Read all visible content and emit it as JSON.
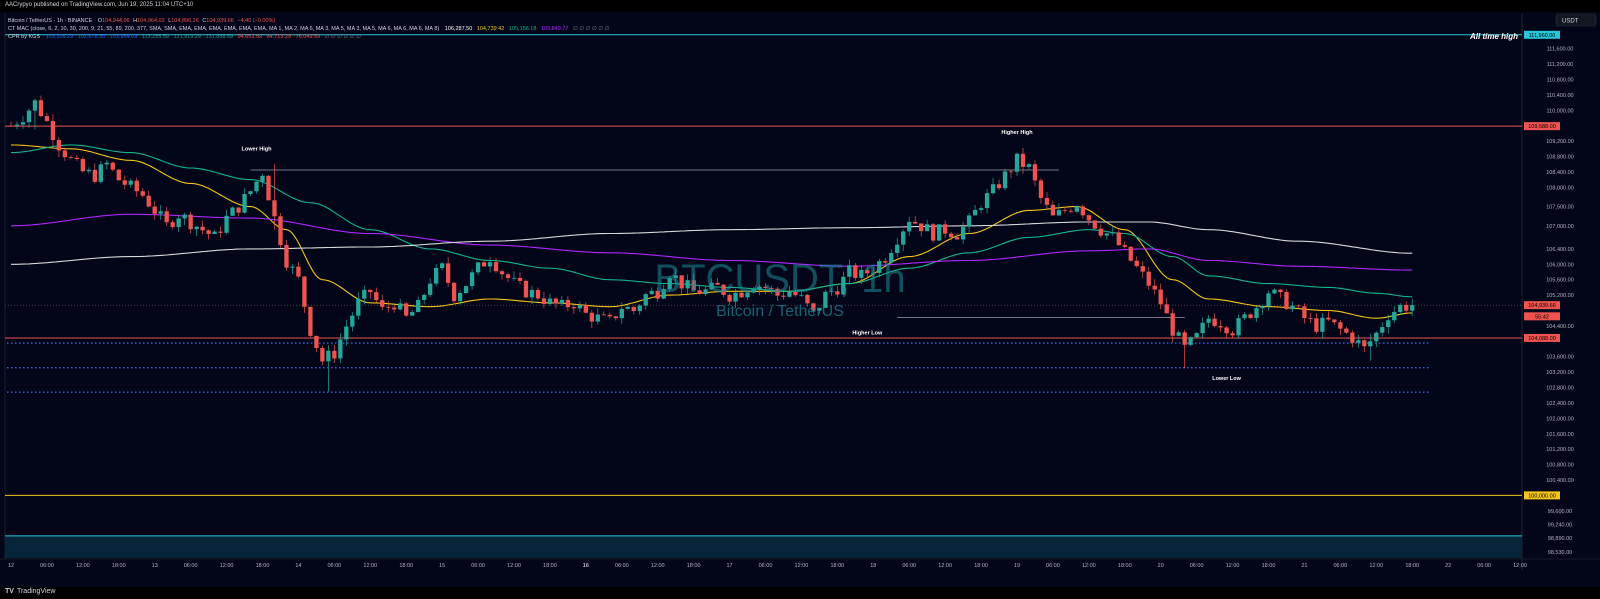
{
  "header": {
    "published": "AACrypyo published on TradingView.com, Jun 19, 2025 11:04 UTC+10"
  },
  "legend": {
    "line1": {
      "symbol": "Bitcoin / TetherUS · 1h · BINANCE",
      "o_label": "O",
      "o": "104,944.06",
      "h_label": "H",
      "h": "104,964.02",
      "l_label": "L",
      "l": "104,896.26",
      "c_label": "C",
      "c": "104,939.66",
      "chg": "−4.40 (−0.00%)"
    },
    "line2": {
      "label": "CT MAC (close, 6, 2, 10, 30, 200, 9, 21, 55, 89, 200, 377, SMA, SMA, EMA, EMA, EMA, EMA, EMA, EMA, MA 1, MA 2, MA 6, MA 3, MA 5, MA 3, MA 5, MA 6, MA 6, MA 6, MA 8)",
      "v1": "106,287.50",
      "v2": "104,739.42",
      "v3": "105,156.18",
      "v4": "105,849.77",
      "tail": "∅ ∅ ∅ ∅ ∅ ∅"
    },
    "line3": {
      "label": "CPR by KGS",
      "v1": "103,316.29",
      "v2": "102,678.50",
      "v3": "103,954.09",
      "v4": "113,255.59",
      "v5": "121,919.29",
      "v6": "131,858.59",
      "v7": "94,652.59",
      "v8": "84,713.29",
      "v9": "76,049.59",
      "tail": "∅ ∅ ∅ ∅ ∅ ∅"
    }
  },
  "watermark": {
    "symbol": "BTCUSDT, 1h",
    "name": "Bitcoin / TetherUS"
  },
  "currency_button": "USDT",
  "ath_label": "All time high",
  "footer": {
    "logo": "TradingView",
    "logo_mark": "TV"
  },
  "colors": {
    "background": "#020618",
    "up": "#26a69a",
    "down": "#ef5350",
    "ath_line": "#26c6da",
    "red_line": "#ef5350",
    "yellow_line": "#f0c040",
    "cpr_dots": "#2962ff",
    "ma_yellow": "#f5c518",
    "ma_green": "#13b58a",
    "ma_purple": "#b026ff",
    "ma_white": "#d8d8d8",
    "label_blue": "#2962ff",
    "label_cyan": "#26c6da",
    "label_green": "#26a69a",
    "label_red": "#ef5350",
    "label_yellow": "#f5c518",
    "label_purple": "#b026ff"
  },
  "chart_data": {
    "type": "candlestick",
    "title": "BTCUSDT, 1h",
    "ylim": [
      98400,
      112500
    ],
    "y_ticks": [
      98530,
      98890,
      99240,
      99600,
      100400,
      100800,
      101200,
      101600,
      102000,
      102400,
      102800,
      103200,
      103600,
      104400,
      105200,
      105600,
      106000,
      106400,
      107000,
      107500,
      108000,
      108400,
      108800,
      109200,
      110000,
      110400,
      110800,
      111200,
      111600
    ],
    "y_tick_labels": [
      "98,530.00",
      "98,890.00",
      "99,240.00",
      "99,600.00",
      "100,400.00",
      "100,800.00",
      "101,200.00",
      "101,600.00",
      "102,000.00",
      "102,400.00",
      "102,800.00",
      "103,200.00",
      "103,600.00",
      "104,400.00",
      "105,200.00",
      "105,600.00",
      "106,000.00",
      "106,400.00",
      "107,000.00",
      "107,500.00",
      "108,000.00",
      "108,400.00",
      "108,800.00",
      "109,200.00",
      "110,000.00",
      "110,400.00",
      "110,800.00",
      "111,200.00",
      "111,600.00"
    ],
    "price_labels": [
      {
        "value": 111960,
        "text": "111,960.00",
        "color": "#26c6da"
      },
      {
        "value": 109588,
        "text": "109,588.00",
        "color": "#ef5350"
      },
      {
        "value": 104939.66,
        "text": "104,939.66",
        "color": "#ef5350"
      },
      {
        "value": 104650,
        "text": "55:42",
        "color": "#ef5350"
      },
      {
        "value": 104088,
        "text": "104,088.00",
        "color": "#ef5350"
      },
      {
        "value": 100000,
        "text": "100,000.00",
        "color": "#f5c518"
      }
    ],
    "x_axis": {
      "start": "Jun 12 00:00",
      "end": "Jun 22 12:00",
      "tick_step_hours": 6,
      "tick_labels": [
        "12",
        "06:00",
        "12:00",
        "18:00",
        "13",
        "06:00",
        "12:00",
        "18:00",
        "14",
        "06:00",
        "12:00",
        "18:00",
        "15",
        "06:00",
        "12:00",
        "18:00",
        "16",
        "06:00",
        "12:00",
        "18:00",
        "17",
        "06:00",
        "12:00",
        "18:00",
        "18",
        "06:00",
        "12:00",
        "18:00",
        "19",
        "06:00",
        "12:00",
        "18:00",
        "20",
        "06:00",
        "12:00",
        "18:00",
        "21",
        "06:00",
        "12:00",
        "18:00",
        "22",
        "06:00",
        "12:00"
      ],
      "bold_labels": [
        "16"
      ]
    },
    "horizontal_levels": [
      {
        "name": "all-time-high",
        "value": 111960,
        "color": "#26c6da"
      },
      {
        "name": "resistance",
        "value": 109588,
        "color": "#ef5350"
      },
      {
        "name": "support",
        "value": 104088,
        "color": "#ef5350"
      },
      {
        "name": "round-number",
        "value": 100000,
        "color": "#f5c518"
      },
      {
        "name": "band-top",
        "value": 98950,
        "color": "#26c6da"
      }
    ],
    "cpr_levels": [
      103954.09,
      103316.29,
      102678.5
    ],
    "swing_lines": [
      {
        "from_hour": 40,
        "to_hour": 175,
        "value": 108450
      },
      {
        "from_hour": 148,
        "to_hour": 196,
        "value": 104620
      }
    ],
    "annotations": [
      {
        "text": "Lower High",
        "hour": 41,
        "value": 108950
      },
      {
        "text": "Higher High",
        "hour": 168,
        "value": 109380
      },
      {
        "text": "Higher Low",
        "hour": 143,
        "value": 104180
      },
      {
        "text": "Lower Low",
        "hour": 203,
        "value": 102990
      }
    ],
    "close_path": [
      [
        0,
        109600
      ],
      [
        2,
        109850
      ],
      [
        4,
        110200
      ],
      [
        6,
        109700
      ],
      [
        8,
        109100
      ],
      [
        10,
        108700
      ],
      [
        12,
        108400
      ],
      [
        14,
        108300
      ],
      [
        16,
        108600
      ],
      [
        18,
        108200
      ],
      [
        20,
        108000
      ],
      [
        22,
        107800
      ],
      [
        24,
        107400
      ],
      [
        26,
        107000
      ],
      [
        28,
        107300
      ],
      [
        30,
        107100
      ],
      [
        32,
        106900
      ],
      [
        34,
        106700
      ],
      [
        36,
        107200
      ],
      [
        38,
        107500
      ],
      [
        40,
        107900
      ],
      [
        42,
        108400
      ],
      [
        44,
        107200
      ],
      [
        46,
        106100
      ],
      [
        48,
        105600
      ],
      [
        50,
        104300
      ],
      [
        52,
        103500
      ],
      [
        54,
        103700
      ],
      [
        56,
        104400
      ],
      [
        58,
        105000
      ],
      [
        60,
        105300
      ],
      [
        62,
        104800
      ],
      [
        64,
        105000
      ],
      [
        66,
        104600
      ],
      [
        68,
        104900
      ],
      [
        70,
        105600
      ],
      [
        72,
        105900
      ],
      [
        74,
        105200
      ],
      [
        76,
        105500
      ],
      [
        78,
        105900
      ],
      [
        80,
        106200
      ],
      [
        82,
        105800
      ],
      [
        84,
        105500
      ],
      [
        86,
        105300
      ],
      [
        88,
        105200
      ],
      [
        90,
        105000
      ],
      [
        92,
        104900
      ],
      [
        94,
        105000
      ],
      [
        96,
        104700
      ],
      [
        98,
        104600
      ],
      [
        100,
        104500
      ],
      [
        102,
        104900
      ],
      [
        104,
        104800
      ],
      [
        106,
        105200
      ],
      [
        108,
        105300
      ],
      [
        110,
        105800
      ],
      [
        112,
        105500
      ],
      [
        114,
        105300
      ],
      [
        116,
        105300
      ],
      [
        118,
        105400
      ],
      [
        120,
        105200
      ],
      [
        122,
        105300
      ],
      [
        124,
        105500
      ],
      [
        126,
        105400
      ],
      [
        128,
        105200
      ],
      [
        130,
        105300
      ],
      [
        132,
        105100
      ],
      [
        134,
        104700
      ],
      [
        136,
        105200
      ],
      [
        138,
        105400
      ],
      [
        140,
        105800
      ],
      [
        142,
        105700
      ],
      [
        144,
        105900
      ],
      [
        146,
        106200
      ],
      [
        148,
        106700
      ],
      [
        150,
        107200
      ],
      [
        152,
        107000
      ],
      [
        154,
        106800
      ],
      [
        156,
        106900
      ],
      [
        158,
        106800
      ],
      [
        160,
        107100
      ],
      [
        162,
        107600
      ],
      [
        164,
        107900
      ],
      [
        166,
        108300
      ],
      [
        168,
        108700
      ],
      [
        170,
        108500
      ],
      [
        172,
        107700
      ],
      [
        174,
        107200
      ],
      [
        176,
        107400
      ],
      [
        178,
        107600
      ],
      [
        180,
        107200
      ],
      [
        182,
        106900
      ],
      [
        184,
        106700
      ],
      [
        186,
        106300
      ],
      [
        188,
        105900
      ],
      [
        190,
        105500
      ],
      [
        192,
        105000
      ],
      [
        194,
        104300
      ],
      [
        196,
        103800
      ],
      [
        198,
        104100
      ],
      [
        200,
        104600
      ],
      [
        202,
        104500
      ],
      [
        204,
        104300
      ],
      [
        206,
        104600
      ],
      [
        208,
        104900
      ],
      [
        210,
        105300
      ],
      [
        212,
        105100
      ],
      [
        214,
        104900
      ],
      [
        216,
        104600
      ],
      [
        218,
        104400
      ],
      [
        220,
        104500
      ],
      [
        222,
        104300
      ],
      [
        224,
        104100
      ],
      [
        226,
        103800
      ],
      [
        228,
        104200
      ],
      [
        230,
        104700
      ],
      [
        232,
        104900
      ],
      [
        234,
        104939.66
      ]
    ],
    "extremes": [
      {
        "hour": 4,
        "high": 110300,
        "low": 109500
      },
      {
        "hour": 44,
        "high": 108600,
        "low": 106900
      },
      {
        "hour": 53,
        "high": 103900,
        "low": 102700
      },
      {
        "hour": 168,
        "high": 108900,
        "low": 108300
      },
      {
        "hour": 196,
        "high": 104300,
        "low": 103300
      },
      {
        "hour": 227,
        "high": 104200,
        "low": 103500
      }
    ],
    "ma_lines": [
      {
        "name": "MA yellow",
        "color": "#f5c518",
        "points": [
          [
            0,
            109100
          ],
          [
            10,
            109000
          ],
          [
            20,
            108700
          ],
          [
            30,
            108100
          ],
          [
            40,
            107500
          ],
          [
            46,
            106900
          ],
          [
            52,
            105600
          ],
          [
            60,
            105000
          ],
          [
            70,
            104900
          ],
          [
            80,
            105100
          ],
          [
            90,
            105000
          ],
          [
            100,
            104900
          ],
          [
            110,
            105200
          ],
          [
            120,
            105300
          ],
          [
            130,
            105300
          ],
          [
            140,
            105500
          ],
          [
            150,
            106200
          ],
          [
            160,
            106800
          ],
          [
            170,
            107400
          ],
          [
            178,
            107500
          ],
          [
            186,
            106900
          ],
          [
            194,
            105600
          ],
          [
            200,
            105100
          ],
          [
            210,
            104900
          ],
          [
            220,
            104800
          ],
          [
            228,
            104600
          ],
          [
            234,
            104739.42
          ]
        ]
      },
      {
        "name": "MA green",
        "color": "#13b58a",
        "points": [
          [
            0,
            108900
          ],
          [
            10,
            109100
          ],
          [
            20,
            108900
          ],
          [
            30,
            108500
          ],
          [
            40,
            108200
          ],
          [
            50,
            107600
          ],
          [
            60,
            106900
          ],
          [
            70,
            106400
          ],
          [
            80,
            106100
          ],
          [
            90,
            105900
          ],
          [
            100,
            105600
          ],
          [
            110,
            105500
          ],
          [
            120,
            105400
          ],
          [
            130,
            105300
          ],
          [
            140,
            105500
          ],
          [
            150,
            105900
          ],
          [
            160,
            106300
          ],
          [
            170,
            106700
          ],
          [
            180,
            106900
          ],
          [
            186,
            106800
          ],
          [
            194,
            106200
          ],
          [
            200,
            105700
          ],
          [
            210,
            105500
          ],
          [
            220,
            105400
          ],
          [
            228,
            105250
          ],
          [
            234,
            105156.18
          ]
        ]
      },
      {
        "name": "MA purple",
        "color": "#b026ff",
        "points": [
          [
            0,
            107000
          ],
          [
            20,
            107300
          ],
          [
            40,
            107200
          ],
          [
            60,
            106800
          ],
          [
            80,
            106500
          ],
          [
            100,
            106300
          ],
          [
            120,
            106100
          ],
          [
            140,
            105950
          ],
          [
            160,
            106100
          ],
          [
            180,
            106350
          ],
          [
            190,
            106400
          ],
          [
            200,
            106100
          ],
          [
            215,
            105950
          ],
          [
            234,
            105849.77
          ]
        ]
      },
      {
        "name": "MA white",
        "color": "#d8d8d8",
        "points": [
          [
            0,
            106000
          ],
          [
            20,
            106200
          ],
          [
            40,
            106400
          ],
          [
            60,
            106450
          ],
          [
            80,
            106600
          ],
          [
            100,
            106800
          ],
          [
            120,
            106900
          ],
          [
            140,
            106950
          ],
          [
            160,
            107000
          ],
          [
            180,
            107100
          ],
          [
            190,
            107100
          ],
          [
            200,
            106900
          ],
          [
            215,
            106600
          ],
          [
            234,
            106287.5
          ]
        ]
      }
    ]
  }
}
